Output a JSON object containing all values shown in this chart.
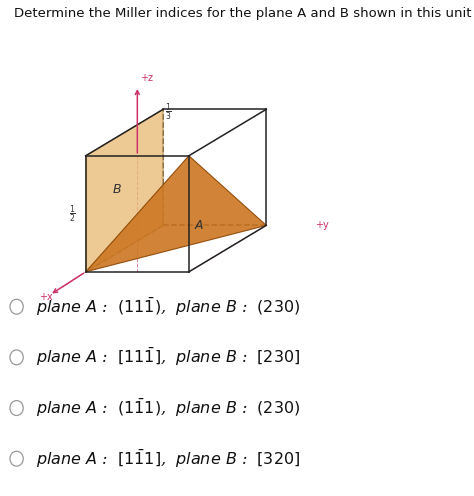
{
  "title": "Determine the Miller indices for the plane A and B shown in this unit cell.",
  "title_fontsize": 9.5,
  "bg_color": "#ffffff",
  "cube_color": "#222222",
  "plane_A_color": "#cc7722",
  "plane_B_color": "#e8b870",
  "axis_color": "#cc3366",
  "option_texts": [
    "plane A :  $(11\\bar{1})$,  plane B :  $(230)$",
    "plane A :  $[11\\bar{1}]$,  plane B :  $[230]$",
    "plane A :  $(1\\bar{1}1)$,  plane B :  $(230)$",
    "plane A :  $[1\\bar{1}1]$,  plane B :  $[320]$"
  ],
  "fig_width": 4.74,
  "fig_height": 4.96,
  "dpi": 100
}
